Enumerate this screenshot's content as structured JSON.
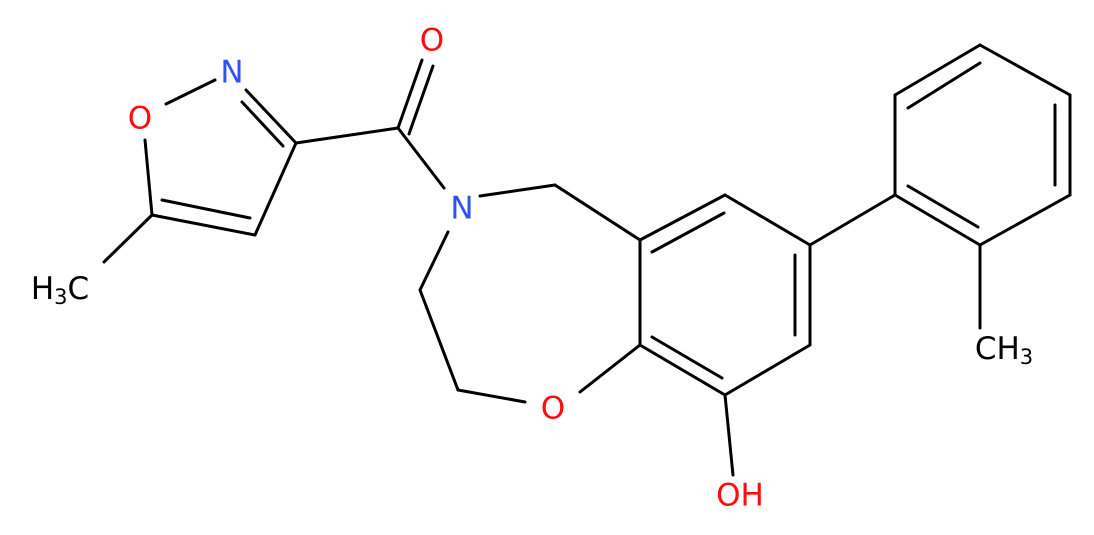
{
  "atoms": [
    {
      "label": "O"
    },
    {
      "label": "N"
    },
    {
      "label": "O"
    },
    {
      "label": [
        "H",
        "3",
        "C"
      ]
    },
    {
      "label": "N"
    },
    {
      "label": "O"
    },
    {
      "label": "OH"
    },
    {
      "label": [
        "CH",
        "3"
      ]
    }
  ]
}
